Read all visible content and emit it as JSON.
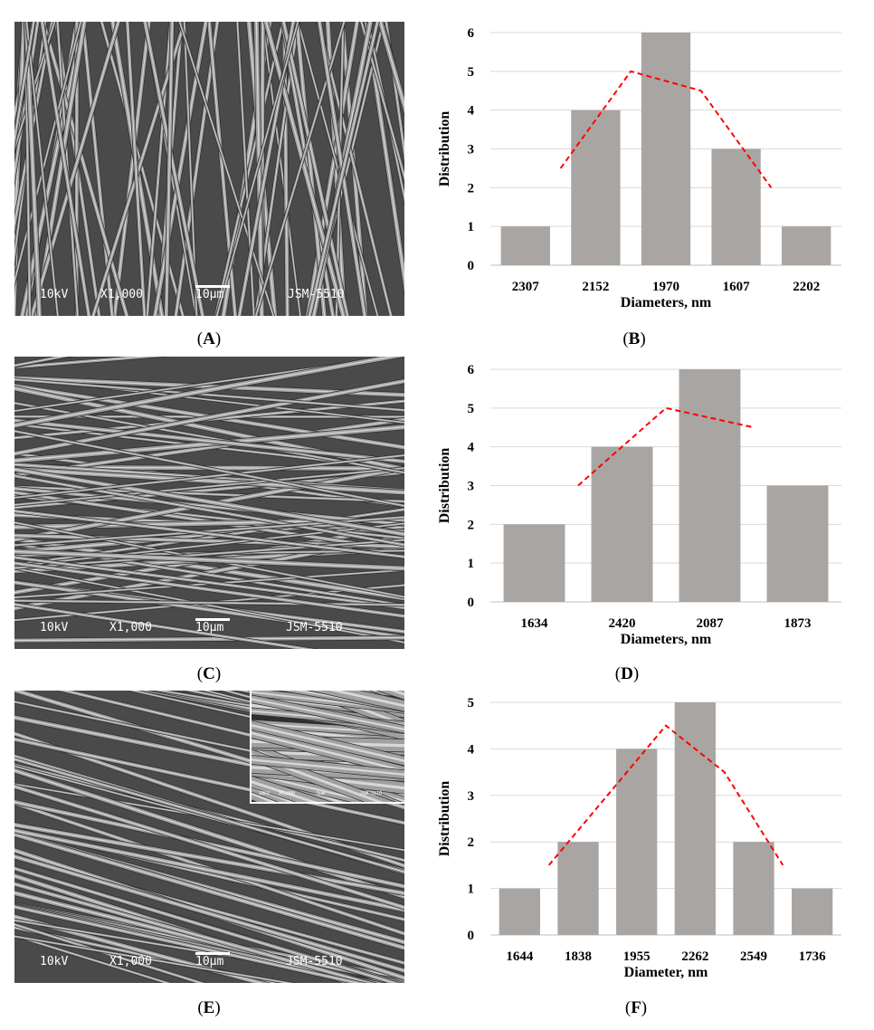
{
  "panels": {
    "A": {
      "label": "A"
    },
    "B": {
      "label": "B"
    },
    "C": {
      "label": "C"
    },
    "D": {
      "label": "D"
    },
    "E": {
      "label": "E"
    },
    "F": {
      "label": "F"
    }
  },
  "sem_images": [
    {
      "voltage": "10kV",
      "magnification": "X1,000",
      "scale_bar": "10µm",
      "instrument": "JSM-5510",
      "fiber_orientation": "mostly vertical"
    },
    {
      "voltage": "10kV",
      "magnification": "X1,000",
      "scale_bar": "10µm",
      "instrument": "JSM-5510",
      "fiber_orientation": "mostly horizontal"
    },
    {
      "voltage": "10kV",
      "magnification": "X1,000",
      "scale_bar": "10µm",
      "instrument": "JSM-5510",
      "fiber_orientation": "diagonal",
      "inset": {
        "voltage": "10kV",
        "magnification": "X5,000",
        "scale_bar": "5µm",
        "instrument": "JSM-5510"
      }
    }
  ],
  "colors": {
    "bar": "#a9a5a3",
    "trend": "#ff0000",
    "grid": "#d9d9d9",
    "sem_background": "#4a4a4a"
  },
  "chart_data": [
    {
      "type": "bar",
      "panel": "B",
      "categories": [
        "2307",
        "2152",
        "1970",
        "1607",
        "2202"
      ],
      "series": [
        {
          "values": [
            1,
            4,
            6,
            3,
            1
          ]
        }
      ],
      "trend_line": {
        "style": "dashed",
        "color": "#ff0000",
        "start_index": 0.5,
        "values": [
          2.5,
          5,
          4.5,
          2
        ]
      },
      "xlabel": "Diameters, nm",
      "ylabel": "Distribution",
      "ylim": [
        0,
        6
      ],
      "yticks": [
        "0",
        "1",
        "2",
        "3",
        "4",
        "5",
        "6"
      ],
      "grid": true
    },
    {
      "type": "bar",
      "panel": "D",
      "categories": [
        "1634",
        "2420",
        "2087",
        "1873"
      ],
      "series": [
        {
          "values": [
            2,
            4,
            6,
            3
          ]
        }
      ],
      "trend_line": {
        "style": "dashed",
        "color": "#ff0000",
        "start_index": 0.5,
        "values": [
          3,
          5,
          4.5
        ]
      },
      "xlabel": "Diameters, nm",
      "ylabel": "Distribution",
      "ylim": [
        0,
        6
      ],
      "yticks": [
        "0",
        "1",
        "2",
        "3",
        "4",
        "5",
        "6"
      ],
      "grid": true
    },
    {
      "type": "bar",
      "panel": "F",
      "categories": [
        "1644",
        "1838",
        "1955",
        "2262",
        "2549",
        "1736"
      ],
      "series": [
        {
          "values": [
            1,
            2,
            4,
            5,
            2,
            1
          ]
        }
      ],
      "trend_line": {
        "style": "dashed",
        "color": "#ff0000",
        "start_index": 0.5,
        "values": [
          1.5,
          3,
          4.5,
          3.5,
          1.5
        ]
      },
      "xlabel": "Diameter, nm",
      "ylabel": "Distribution",
      "ylim": [
        0,
        5
      ],
      "yticks": [
        "0",
        "1",
        "2",
        "3",
        "4",
        "5"
      ],
      "grid": true
    }
  ]
}
